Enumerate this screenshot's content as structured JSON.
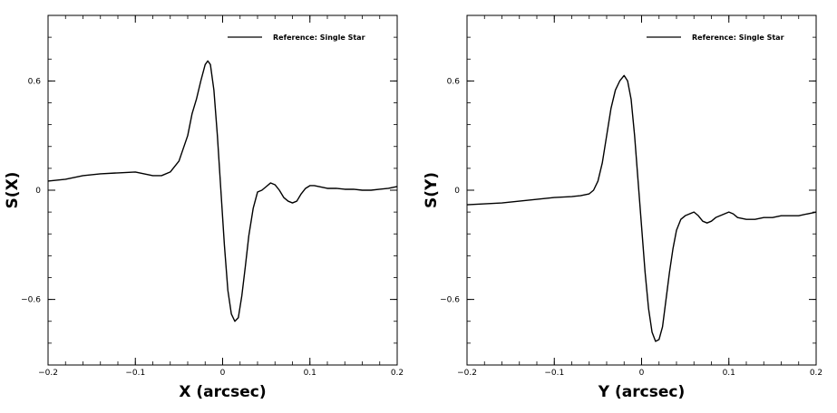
{
  "chart_data": [
    {
      "type": "line",
      "title": "",
      "xlabel": "X (arcsec)",
      "ylabel": "S(X)",
      "xlim": [
        -0.2,
        0.2
      ],
      "ylim": [
        -0.96,
        0.96
      ],
      "xticks": [
        -0.2,
        -0.1,
        0,
        0.1,
        0.2
      ],
      "xtick_labels": [
        "−0.2",
        "−0.1",
        "0",
        "0.1",
        "0.2"
      ],
      "yticks": [
        -0.6,
        0,
        0.6
      ],
      "ytick_labels": [
        "−0.6",
        "0",
        "0.6"
      ],
      "grid": false,
      "legend_position": "top-right",
      "series": [
        {
          "name": "Reference: Single Star",
          "color": "#000000",
          "x": [
            -0.2,
            -0.18,
            -0.16,
            -0.14,
            -0.12,
            -0.1,
            -0.09,
            -0.08,
            -0.07,
            -0.06,
            -0.05,
            -0.04,
            -0.035,
            -0.03,
            -0.025,
            -0.02,
            -0.017,
            -0.014,
            -0.01,
            -0.006,
            -0.002,
            0.002,
            0.006,
            0.01,
            0.014,
            0.018,
            0.022,
            0.026,
            0.03,
            0.035,
            0.04,
            0.045,
            0.05,
            0.055,
            0.06,
            0.065,
            0.07,
            0.075,
            0.08,
            0.085,
            0.09,
            0.095,
            0.1,
            0.105,
            0.11,
            0.12,
            0.13,
            0.14,
            0.15,
            0.16,
            0.17,
            0.18,
            0.19,
            0.2
          ],
          "y": [
            0.05,
            0.06,
            0.08,
            0.09,
            0.095,
            0.1,
            0.09,
            0.08,
            0.08,
            0.1,
            0.16,
            0.3,
            0.42,
            0.5,
            0.6,
            0.69,
            0.71,
            0.69,
            0.55,
            0.3,
            0.0,
            -0.3,
            -0.55,
            -0.68,
            -0.72,
            -0.7,
            -0.58,
            -0.42,
            -0.25,
            -0.1,
            -0.01,
            0.0,
            0.02,
            0.04,
            0.03,
            0.0,
            -0.04,
            -0.06,
            -0.07,
            -0.06,
            -0.02,
            0.01,
            0.025,
            0.025,
            0.02,
            0.01,
            0.01,
            0.005,
            0.005,
            0.0,
            0.0,
            0.005,
            0.01,
            0.02
          ]
        }
      ]
    },
    {
      "type": "line",
      "title": "",
      "xlabel": "Y (arcsec)",
      "ylabel": "S(Y)",
      "xlim": [
        -0.2,
        0.2
      ],
      "ylim": [
        -0.96,
        0.96
      ],
      "xticks": [
        -0.2,
        -0.1,
        0,
        0.1,
        0.2
      ],
      "xtick_labels": [
        "−0.2",
        "−0.1",
        "0",
        "0.1",
        "0.2"
      ],
      "yticks": [
        -0.6,
        0,
        0.6
      ],
      "ytick_labels": [
        "−0.6",
        "0",
        "0.6"
      ],
      "grid": false,
      "legend_position": "top-right",
      "series": [
        {
          "name": "Reference: Single Star",
          "color": "#000000",
          "x": [
            -0.2,
            -0.18,
            -0.16,
            -0.14,
            -0.12,
            -0.1,
            -0.08,
            -0.07,
            -0.06,
            -0.055,
            -0.05,
            -0.045,
            -0.04,
            -0.035,
            -0.03,
            -0.025,
            -0.02,
            -0.016,
            -0.012,
            -0.008,
            -0.004,
            0.0,
            0.004,
            0.008,
            0.012,
            0.016,
            0.02,
            0.024,
            0.028,
            0.032,
            0.036,
            0.04,
            0.045,
            0.05,
            0.055,
            0.06,
            0.065,
            0.07,
            0.075,
            0.08,
            0.085,
            0.09,
            0.095,
            0.1,
            0.105,
            0.11,
            0.12,
            0.13,
            0.14,
            0.15,
            0.16,
            0.17,
            0.18,
            0.19,
            0.2
          ],
          "y": [
            -0.08,
            -0.075,
            -0.07,
            -0.06,
            -0.05,
            -0.04,
            -0.035,
            -0.03,
            -0.02,
            0.0,
            0.05,
            0.15,
            0.3,
            0.45,
            0.55,
            0.6,
            0.63,
            0.6,
            0.5,
            0.3,
            0.05,
            -0.2,
            -0.45,
            -0.65,
            -0.78,
            -0.83,
            -0.82,
            -0.75,
            -0.6,
            -0.45,
            -0.32,
            -0.22,
            -0.16,
            -0.14,
            -0.13,
            -0.12,
            -0.14,
            -0.17,
            -0.18,
            -0.17,
            -0.15,
            -0.14,
            -0.13,
            -0.12,
            -0.13,
            -0.15,
            -0.16,
            -0.16,
            -0.15,
            -0.15,
            -0.14,
            -0.14,
            -0.14,
            -0.13,
            -0.12
          ]
        }
      ]
    }
  ]
}
